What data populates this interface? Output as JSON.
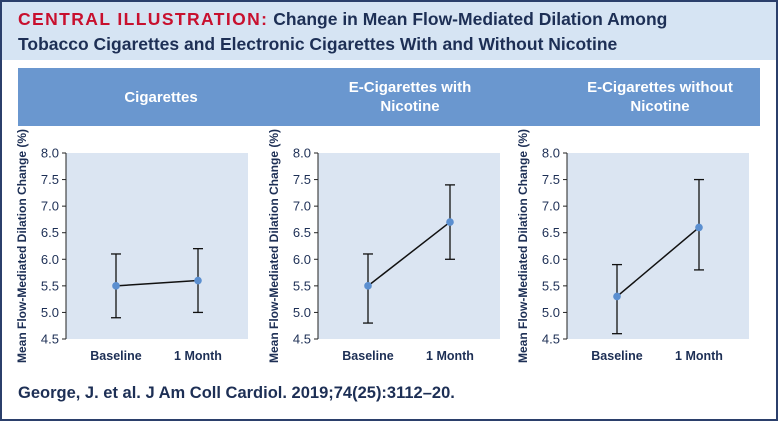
{
  "header": {
    "label": "CENTRAL ILLUSTRATION:",
    "title_line1": "Change in Mean Flow-Mediated Dilation Among",
    "title_line2": "Tobacco Cigarettes and Electronic Cigarettes With and Without Nicotine"
  },
  "colors": {
    "label_red": "#c8102e",
    "title_navy": "#1d2f55",
    "header_bg": "#d6e4f3",
    "band_blue": "#6a97cf",
    "plot_bg": "#dbe5f2",
    "marker": "#5b8fd0"
  },
  "panels": [
    {
      "label": "Cigarettes"
    },
    {
      "label": "E-Cigarettes with\nNicotine"
    },
    {
      "label": "E-Cigarettes without\nNicotine"
    }
  ],
  "chart_data": [
    {
      "type": "line",
      "title": "Cigarettes",
      "categories": [
        "Baseline",
        "1 Month"
      ],
      "values": [
        5.5,
        5.6
      ],
      "error_low": [
        4.9,
        5.0
      ],
      "error_high": [
        6.1,
        6.2
      ],
      "ylabel": "Mean Flow-Mediated Dilation  Change (%)",
      "ylim": [
        4.5,
        8.0
      ],
      "yticks": [
        "4.5",
        "5.0",
        "5.5",
        "6.0",
        "6.5",
        "7.0",
        "7.5",
        "8.0"
      ]
    },
    {
      "type": "line",
      "title": "E-Cigarettes with Nicotine",
      "categories": [
        "Baseline",
        "1 Month"
      ],
      "values": [
        5.5,
        6.7
      ],
      "error_low": [
        4.8,
        6.0
      ],
      "error_high": [
        6.1,
        7.4
      ],
      "ylabel": "Mean Flow-Mediated Dilation  Change (%)",
      "ylim": [
        4.5,
        8.0
      ],
      "yticks": [
        "4.5",
        "5.0",
        "5.5",
        "6.0",
        "6.5",
        "7.0",
        "7.5",
        "8.0"
      ]
    },
    {
      "type": "line",
      "title": "E-Cigarettes without Nicotine",
      "categories": [
        "Baseline",
        "1 Month"
      ],
      "values": [
        5.3,
        6.6
      ],
      "error_low": [
        4.6,
        5.8
      ],
      "error_high": [
        5.9,
        7.5
      ],
      "ylabel": "Mean Flow-Mediated Dilation  Change (%)",
      "ylim": [
        4.5,
        8.0
      ],
      "yticks": [
        "4.5",
        "5.0",
        "5.5",
        "6.0",
        "6.5",
        "7.0",
        "7.5",
        "8.0"
      ]
    }
  ],
  "citation": "George, J. et al. J Am Coll Cardiol. 2019;74(25):3112–20."
}
